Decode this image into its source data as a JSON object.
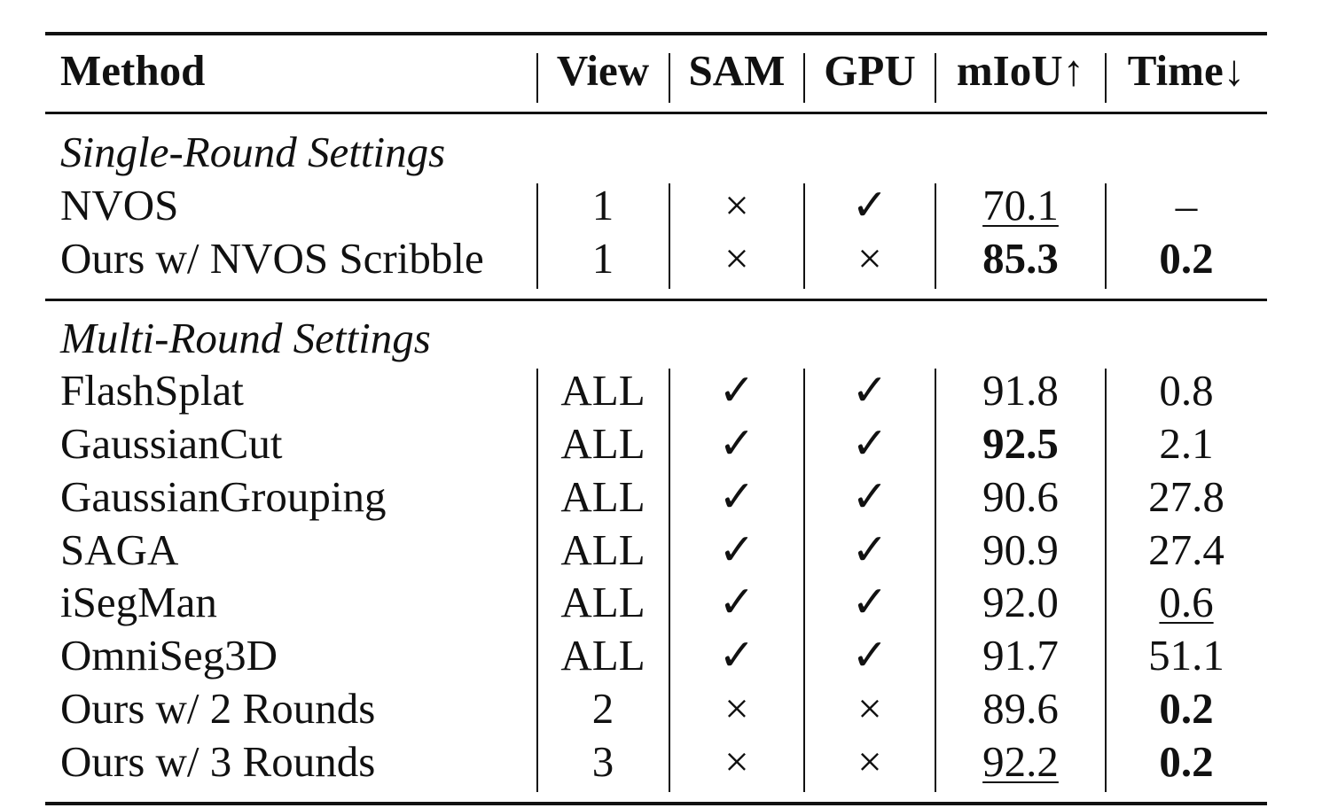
{
  "table": {
    "header": {
      "method": "Method",
      "view": "View",
      "sam": "SAM",
      "gpu": "GPU",
      "miou": "mIoU↑",
      "time": "Time↓"
    },
    "sections": [
      {
        "title": "Single-Round Settings",
        "rows": [
          {
            "method": "NVOS",
            "view": "1",
            "sam": "×",
            "gpu": "✓",
            "miou": "70.1",
            "time": "–",
            "miou_style": "underline",
            "time_style": "normal"
          },
          {
            "method": "Ours w/ NVOS Scribble",
            "view": "1",
            "sam": "×",
            "gpu": "×",
            "miou": "85.3",
            "time": "0.2",
            "miou_style": "bold",
            "time_style": "bold"
          }
        ]
      },
      {
        "title": "Multi-Round Settings",
        "rows": [
          {
            "method": "FlashSplat",
            "view": "ALL",
            "sam": "✓",
            "gpu": "✓",
            "miou": "91.8",
            "time": "0.8",
            "miou_style": "normal",
            "time_style": "normal"
          },
          {
            "method": "GaussianCut",
            "view": "ALL",
            "sam": "✓",
            "gpu": "✓",
            "miou": "92.5",
            "time": "2.1",
            "miou_style": "bold",
            "time_style": "normal"
          },
          {
            "method": "GaussianGrouping",
            "view": "ALL",
            "sam": "✓",
            "gpu": "✓",
            "miou": "90.6",
            "time": "27.8",
            "miou_style": "normal",
            "time_style": "normal"
          },
          {
            "method": "SAGA",
            "view": "ALL",
            "sam": "✓",
            "gpu": "✓",
            "miou": "90.9",
            "time": "27.4",
            "miou_style": "normal",
            "time_style": "normal"
          },
          {
            "method": "iSegMan",
            "view": "ALL",
            "sam": "✓",
            "gpu": "✓",
            "miou": "92.0",
            "time": "0.6",
            "miou_style": "normal",
            "time_style": "underline"
          },
          {
            "method": "OmniSeg3D",
            "view": "ALL",
            "sam": "✓",
            "gpu": "✓",
            "miou": "91.7",
            "time": "51.1",
            "miou_style": "normal",
            "time_style": "normal"
          },
          {
            "method": "Ours w/ 2 Rounds",
            "view": "2",
            "sam": "×",
            "gpu": "×",
            "miou": "89.6",
            "time": "0.2",
            "miou_style": "normal",
            "time_style": "bold"
          },
          {
            "method": "Ours w/ 3 Rounds",
            "view": "3",
            "sam": "×",
            "gpu": "×",
            "miou": "92.2",
            "time": "0.2",
            "miou_style": "underline",
            "time_style": "bold"
          }
        ]
      }
    ]
  }
}
